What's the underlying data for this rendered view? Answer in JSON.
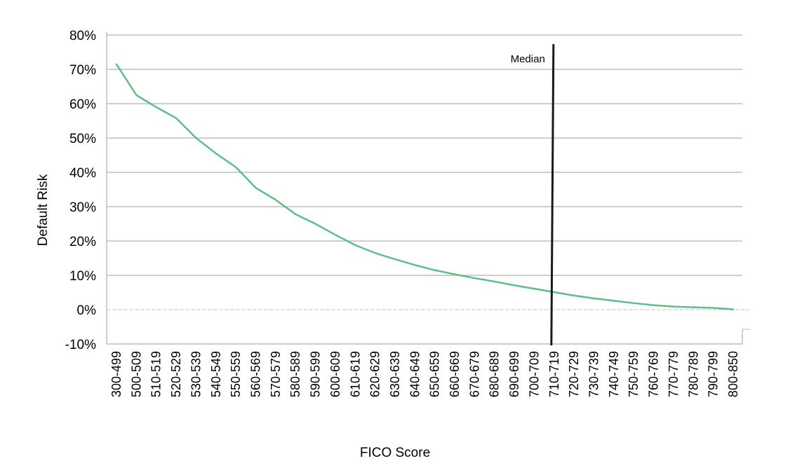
{
  "chart_data": {
    "type": "line",
    "title": "",
    "xlabel": "FICO Score",
    "ylabel": "Default Risk",
    "categories": [
      "300-499",
      "500-509",
      "510-519",
      "520-529",
      "530-539",
      "540-549",
      "550-559",
      "560-569",
      "570-579",
      "580-589",
      "590-599",
      "600-609",
      "610-619",
      "620-629",
      "630-639",
      "640-649",
      "650-659",
      "660-669",
      "670-679",
      "680-689",
      "690-699",
      "700-709",
      "710-719",
      "720-729",
      "730-739",
      "740-749",
      "750-759",
      "760-769",
      "770-779",
      "780-789",
      "790-799",
      "800-850"
    ],
    "series": [
      {
        "values": [
          71.5,
          62.5,
          59.0,
          55.8,
          50.0,
          45.5,
          41.5,
          35.5,
          32.0,
          27.8,
          25.0,
          21.8,
          18.8,
          16.5,
          14.7,
          13.0,
          11.5,
          10.3,
          9.2,
          8.2,
          7.1,
          6.1,
          5.1,
          4.1,
          3.3,
          2.6,
          1.9,
          1.3,
          0.9,
          0.7,
          0.5,
          0.1
        ]
      }
    ],
    "y_ticks": [
      "80%",
      "70%",
      "60%",
      "50%",
      "40%",
      "30%",
      "20%",
      "10%",
      "0%",
      "-10%"
    ],
    "ylim": [
      -10,
      80
    ],
    "grid": true,
    "legend": "none",
    "annotations": [
      {
        "label": "Median",
        "x_category": "710-719"
      }
    ],
    "colors": {
      "line": "#5bbf87",
      "grid": "#cfcfcf",
      "median": "#1a1a1a",
      "axis": "#bfbfbf"
    }
  }
}
